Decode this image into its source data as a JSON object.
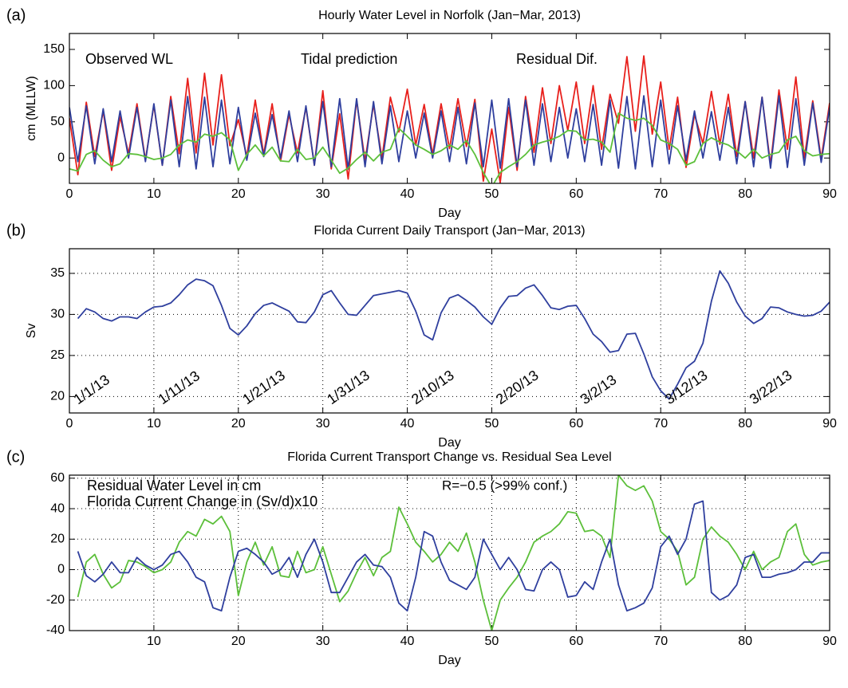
{
  "chart_data": [
    {
      "type": "line",
      "panel_label": "(a)",
      "title": "Hourly Water Level in Norfolk (Jan−Mar, 2013)",
      "xlabel": "Day",
      "ylabel": "cm (MLLW)",
      "xlim": [
        0,
        90
      ],
      "xticks": [
        0,
        10,
        20,
        30,
        40,
        50,
        60,
        70,
        80,
        90
      ],
      "ylim": [
        -35,
        172
      ],
      "yticks": [
        0,
        50,
        100,
        150
      ],
      "grid": false,
      "legend": "top-left",
      "legend_orientation": "horizontal",
      "x": [
        0,
        1,
        2,
        3,
        4,
        5,
        6,
        7,
        8,
        9,
        10,
        11,
        12,
        13,
        14,
        15,
        16,
        17,
        18,
        19,
        20,
        21,
        22,
        23,
        24,
        25,
        26,
        27,
        28,
        29,
        30,
        31,
        32,
        33,
        34,
        35,
        36,
        37,
        38,
        39,
        40,
        41,
        42,
        43,
        44,
        45,
        46,
        47,
        48,
        49,
        50,
        51,
        52,
        53,
        54,
        55,
        56,
        57,
        58,
        59,
        60,
        61,
        62,
        63,
        64,
        65,
        66,
        67,
        68,
        69,
        70,
        71,
        72,
        73,
        74,
        75,
        76,
        77,
        78,
        79,
        80,
        81,
        82,
        83,
        84,
        85,
        86,
        87,
        88,
        89,
        90
      ],
      "series": [
        {
          "name": "Observed WL",
          "color": "#e8201c",
          "values": [
            55,
            -23,
            77,
            2,
            65,
            -17,
            57,
            6,
            75,
            -3,
            73,
            -10,
            85,
            6,
            110,
            7,
            117,
            18,
            115,
            17,
            53,
            2,
            80,
            5,
            75,
            -4,
            60,
            7,
            70,
            -10,
            93,
            -15,
            61,
            -29,
            80,
            -4,
            74,
            0,
            84,
            36,
            95,
            18,
            74,
            5,
            75,
            13,
            82,
            16,
            81,
            -32,
            40,
            -34,
            70,
            -17,
            85,
            8,
            97,
            20,
            100,
            38,
            105,
            20,
            100,
            12,
            88,
            48,
            140,
            37,
            141,
            33,
            105,
            12,
            84,
            -13,
            60,
            20,
            92,
            19,
            88,
            2,
            78,
            0,
            84,
            -9,
            94,
            12,
            112,
            0,
            79,
            -1,
            76
          ]
        },
        {
          "name": "Tidal prediction",
          "color": "#2f3f9e",
          "values": [
            70,
            -5,
            72,
            -8,
            68,
            -5,
            65,
            0,
            70,
            -5,
            75,
            -10,
            80,
            -12,
            85,
            -15,
            84,
            -12,
            80,
            -8,
            70,
            -3,
            62,
            2,
            60,
            0,
            65,
            -5,
            72,
            -10,
            78,
            -12,
            82,
            -15,
            82,
            -12,
            78,
            -8,
            72,
            -5,
            65,
            0,
            62,
            0,
            65,
            -5,
            70,
            -8,
            76,
            -12,
            80,
            -14,
            82,
            -12,
            80,
            -10,
            75,
            -5,
            70,
            0,
            68,
            -5,
            74,
            -10,
            80,
            -14,
            85,
            -15,
            86,
            -12,
            80,
            -8,
            72,
            -3,
            65,
            0,
            64,
            -3,
            70,
            -8,
            78,
            -12,
            84,
            -14,
            86,
            -13,
            82,
            -10,
            76,
            -6,
            70
          ]
        },
        {
          "name": "Residual Dif.",
          "color": "#5cbf3a",
          "values": [
            -15,
            -18,
            5,
            10,
            -3,
            -12,
            -8,
            6,
            5,
            2,
            -2,
            0,
            5,
            18,
            25,
            22,
            33,
            30,
            35,
            25,
            -17,
            5,
            18,
            3,
            15,
            -4,
            -5,
            12,
            -2,
            0,
            15,
            -3,
            -21,
            -14,
            -2,
            8,
            -4,
            8,
            12,
            41,
            30,
            18,
            12,
            5,
            10,
            18,
            12,
            24,
            5,
            -20,
            -40,
            -20,
            -12,
            -5,
            5,
            18,
            22,
            25,
            30,
            38,
            37,
            25,
            26,
            22,
            8,
            62,
            55,
            52,
            55,
            45,
            25,
            20,
            12,
            -10,
            -5,
            20,
            28,
            22,
            18,
            10,
            0,
            12,
            0,
            5,
            8,
            25,
            30,
            10,
            3,
            5,
            6
          ]
        }
      ]
    },
    {
      "type": "line",
      "panel_label": "(b)",
      "title": "Florida Current Daily Transport (Jan−Mar, 2013)",
      "xlabel": "Day",
      "ylabel": "Sv",
      "xlim": [
        0,
        90
      ],
      "xticks": [
        0,
        10,
        20,
        30,
        40,
        50,
        60,
        70,
        80,
        90
      ],
      "ylim": [
        18,
        38
      ],
      "yticks": [
        20,
        25,
        30,
        35
      ],
      "grid": true,
      "annotations": [
        "1/1/13",
        "1/11/13",
        "1/21/13",
        "1/31/13",
        "2/10/13",
        "2/20/13",
        "3/2/13",
        "3/12/13",
        "3/22/13"
      ],
      "x": [
        1,
        2,
        3,
        4,
        5,
        6,
        7,
        8,
        9,
        10,
        11,
        12,
        13,
        14,
        15,
        16,
        17,
        18,
        19,
        20,
        21,
        22,
        23,
        24,
        25,
        26,
        27,
        28,
        29,
        30,
        31,
        32,
        33,
        34,
        35,
        36,
        37,
        38,
        39,
        40,
        41,
        42,
        43,
        44,
        45,
        46,
        47,
        48,
        49,
        50,
        51,
        52,
        53,
        54,
        55,
        56,
        57,
        58,
        59,
        60,
        61,
        62,
        63,
        64,
        65,
        66,
        67,
        68,
        69,
        70,
        71,
        72,
        73,
        74,
        75,
        76,
        77,
        78,
        79,
        80,
        81,
        82,
        83,
        84,
        85,
        86,
        87,
        88,
        89,
        90
      ],
      "series": [
        {
          "color": "#2f3f9e",
          "values": [
            29.5,
            30.7,
            30.3,
            29.5,
            29.2,
            29.7,
            29.7,
            29.5,
            30.3,
            30.9,
            31.0,
            31.4,
            32.4,
            33.6,
            34.3,
            34.1,
            33.5,
            31.1,
            28.3,
            27.5,
            28.6,
            30.1,
            31.1,
            31.4,
            30.9,
            30.4,
            29.1,
            29.0,
            30.3,
            32.4,
            32.9,
            31.4,
            30.0,
            29.9,
            31.1,
            32.3,
            32.5,
            32.7,
            32.9,
            32.6,
            30.4,
            27.5,
            26.9,
            30.2,
            32.0,
            32.4,
            31.7,
            30.9,
            29.7,
            28.8,
            30.8,
            32.2,
            32.3,
            33.2,
            33.6,
            32.3,
            30.8,
            30.6,
            31.0,
            31.1,
            29.5,
            27.6,
            26.7,
            25.4,
            25.6,
            27.6,
            27.7,
            25.2,
            22.4,
            20.7,
            19.7,
            21.5,
            23.5,
            24.3,
            26.5,
            31.6,
            35.3,
            33.8,
            31.5,
            29.8,
            28.9,
            29.5,
            30.9,
            30.8,
            30.3,
            30.0,
            29.8,
            29.9,
            30.4,
            31.5
          ]
        }
      ]
    },
    {
      "type": "line",
      "panel_label": "(c)",
      "title": "Florida Current Transport Change vs. Residual Sea Level",
      "xlabel": "Day",
      "xlim": [
        0,
        90
      ],
      "xticks": [
        10,
        20,
        30,
        40,
        50,
        60,
        70,
        80,
        90
      ],
      "ylim": [
        -40,
        62
      ],
      "yticks": [
        -40,
        -20,
        0,
        20,
        40,
        60
      ],
      "grid": true,
      "legend": "top-left",
      "legend_orientation": "vertical",
      "annotation": "R=−0.5 (>99% conf.)",
      "x": [
        1,
        2,
        3,
        4,
        5,
        6,
        7,
        8,
        9,
        10,
        11,
        12,
        13,
        14,
        15,
        16,
        17,
        18,
        19,
        20,
        21,
        22,
        23,
        24,
        25,
        26,
        27,
        28,
        29,
        30,
        31,
        32,
        33,
        34,
        35,
        36,
        37,
        38,
        39,
        40,
        41,
        42,
        43,
        44,
        45,
        46,
        47,
        48,
        49,
        50,
        51,
        52,
        53,
        54,
        55,
        56,
        57,
        58,
        59,
        60,
        61,
        62,
        63,
        64,
        65,
        66,
        67,
        68,
        69,
        70,
        71,
        72,
        73,
        74,
        75,
        76,
        77,
        78,
        79,
        80,
        81,
        82,
        83,
        84,
        85,
        86,
        87,
        88,
        89,
        90
      ],
      "series": [
        {
          "name": "Residual Water Level in cm",
          "color": "#5cbf3a",
          "values": [
            -18,
            5,
            10,
            -3,
            -12,
            -8,
            6,
            5,
            2,
            -2,
            0,
            5,
            18,
            25,
            22,
            33,
            30,
            35,
            25,
            -17,
            5,
            18,
            3,
            15,
            -4,
            -5,
            12,
            -2,
            0,
            15,
            -3,
            -21,
            -14,
            -2,
            8,
            -4,
            8,
            12,
            41,
            30,
            18,
            12,
            5,
            10,
            18,
            12,
            24,
            5,
            -20,
            -40,
            -20,
            -12,
            -5,
            5,
            18,
            22,
            25,
            30,
            38,
            37,
            25,
            26,
            22,
            8,
            62,
            55,
            52,
            55,
            45,
            25,
            20,
            12,
            -10,
            -5,
            20,
            28,
            22,
            18,
            10,
            0,
            12,
            0,
            5,
            8,
            25,
            30,
            10,
            3,
            5,
            6
          ]
        },
        {
          "name": "Florida Current Change in (Sv/d)x10",
          "color": "#2f3f9e",
          "values": [
            12,
            -4,
            -8,
            -3,
            5,
            -2,
            -2,
            8,
            3,
            0,
            3,
            10,
            12,
            5,
            -5,
            -8,
            -25,
            -27,
            -5,
            12,
            14,
            10,
            5,
            -3,
            0,
            8,
            -5,
            10,
            20,
            5,
            -15,
            -15,
            -5,
            5,
            10,
            3,
            2,
            -5,
            -22,
            -27,
            -5,
            25,
            22,
            5,
            -7,
            -10,
            -13,
            -5,
            20,
            10,
            0,
            8,
            0,
            -13,
            -14,
            0,
            5,
            0,
            -18,
            -17,
            -8,
            -13,
            5,
            20,
            -10,
            -27,
            -25,
            -22,
            -12,
            15,
            22,
            10,
            20,
            43,
            45,
            -15,
            -20,
            -17,
            -10,
            8,
            10,
            -5,
            -5,
            -3,
            -2,
            0,
            5,
            5,
            11,
            11
          ]
        }
      ]
    }
  ]
}
